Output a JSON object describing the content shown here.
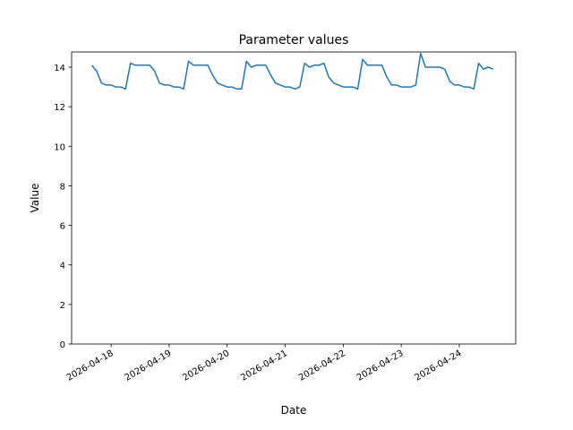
{
  "chart_data": {
    "type": "line",
    "title": "Parameter values",
    "xlabel": "Date",
    "ylabel": "Value",
    "xlim": [
      "2026-04-17T07:40",
      "2026-04-24T23:20"
    ],
    "ylim": [
      0,
      14.77
    ],
    "yticks": [
      0,
      2,
      4,
      6,
      8,
      10,
      12,
      14
    ],
    "xticks": [
      "2026-04-18",
      "2026-04-19",
      "2026-04-20",
      "2026-04-21",
      "2026-04-22",
      "2026-04-23",
      "2026-04-24"
    ],
    "grid": false,
    "line_color": "#1f77b4",
    "series": [
      {
        "x": [
          "2026-04-17T16:00",
          "2026-04-17T18:00",
          "2026-04-17T20:00",
          "2026-04-17T22:00",
          "2026-04-18T00:00",
          "2026-04-18T02:00",
          "2026-04-18T04:00",
          "2026-04-18T06:00",
          "2026-04-18T08:00",
          "2026-04-18T10:00",
          "2026-04-18T12:00",
          "2026-04-18T14:00",
          "2026-04-18T16:00",
          "2026-04-18T18:00",
          "2026-04-18T20:00",
          "2026-04-18T22:00",
          "2026-04-19T00:00",
          "2026-04-19T02:00",
          "2026-04-19T04:00",
          "2026-04-19T06:00",
          "2026-04-19T08:00",
          "2026-04-19T10:00",
          "2026-04-19T12:00",
          "2026-04-19T14:00",
          "2026-04-19T16:00",
          "2026-04-19T18:00",
          "2026-04-19T20:00",
          "2026-04-19T22:00",
          "2026-04-20T00:00",
          "2026-04-20T02:00",
          "2026-04-20T04:00",
          "2026-04-20T06:00",
          "2026-04-20T08:00",
          "2026-04-20T10:00",
          "2026-04-20T12:00",
          "2026-04-20T14:00",
          "2026-04-20T16:00",
          "2026-04-20T18:00",
          "2026-04-20T20:00",
          "2026-04-20T22:00",
          "2026-04-21T00:00",
          "2026-04-21T02:00",
          "2026-04-21T04:00",
          "2026-04-21T06:00",
          "2026-04-21T08:00",
          "2026-04-21T10:00",
          "2026-04-21T12:00",
          "2026-04-21T14:00",
          "2026-04-21T16:00",
          "2026-04-21T18:00",
          "2026-04-21T20:00",
          "2026-04-21T22:00",
          "2026-04-22T00:00",
          "2026-04-22T02:00",
          "2026-04-22T04:00",
          "2026-04-22T06:00",
          "2026-04-22T08:00",
          "2026-04-22T10:00",
          "2026-04-22T12:00",
          "2026-04-22T14:00",
          "2026-04-22T16:00",
          "2026-04-22T18:00",
          "2026-04-22T20:00",
          "2026-04-22T22:00",
          "2026-04-23T00:00",
          "2026-04-23T02:00",
          "2026-04-23T04:00",
          "2026-04-23T06:00",
          "2026-04-23T08:00",
          "2026-04-23T10:00",
          "2026-04-23T12:00",
          "2026-04-23T14:00",
          "2026-04-23T16:00",
          "2026-04-23T18:00",
          "2026-04-23T20:00",
          "2026-04-23T22:00",
          "2026-04-24T00:00",
          "2026-04-24T02:00",
          "2026-04-24T04:00",
          "2026-04-24T06:00",
          "2026-04-24T08:00",
          "2026-04-24T10:00",
          "2026-04-24T12:00",
          "2026-04-24T14:00"
        ],
        "y": [
          14.1,
          13.8,
          13.2,
          13.1,
          13.1,
          13.0,
          13.0,
          12.9,
          14.2,
          14.1,
          14.1,
          14.1,
          14.1,
          13.8,
          13.2,
          13.1,
          13.1,
          13.0,
          13.0,
          12.9,
          14.3,
          14.1,
          14.1,
          14.1,
          14.1,
          13.6,
          13.2,
          13.1,
          13.0,
          13.0,
          12.9,
          12.9,
          14.3,
          14.0,
          14.1,
          14.1,
          14.1,
          13.6,
          13.2,
          13.1,
          13.0,
          13.0,
          12.9,
          13.0,
          14.2,
          14.0,
          14.1,
          14.1,
          14.2,
          13.5,
          13.2,
          13.1,
          13.0,
          13.0,
          13.0,
          12.9,
          14.4,
          14.1,
          14.1,
          14.1,
          14.1,
          13.5,
          13.1,
          13.1,
          13.0,
          13.0,
          13.0,
          13.1,
          14.7,
          14.0,
          14.0,
          14.0,
          14.0,
          13.9,
          13.3,
          13.1,
          13.1,
          13.0,
          13.0,
          12.9,
          14.2,
          13.9,
          14.0,
          13.9
        ]
      }
    ]
  }
}
